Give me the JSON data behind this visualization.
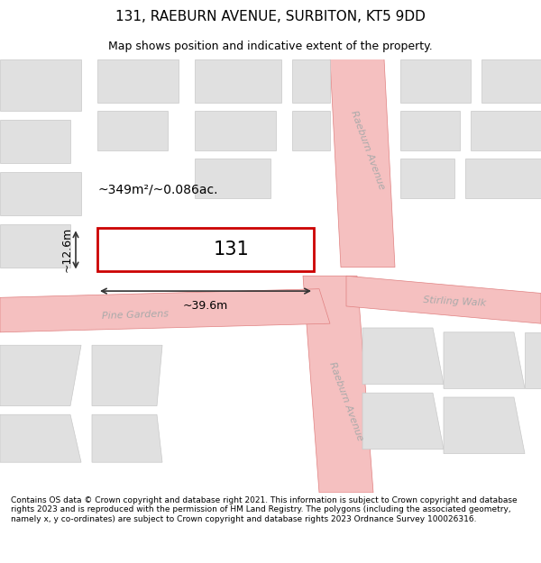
{
  "title": "131, RAEBURN AVENUE, SURBITON, KT5 9DD",
  "subtitle": "Map shows position and indicative extent of the property.",
  "footer": "Contains OS data © Crown copyright and database right 2021. This information is subject to Crown copyright and database rights 2023 and is reproduced with the permission of HM Land Registry. The polygons (including the associated geometry, namely x, y co-ordinates) are subject to Crown copyright and database rights 2023 Ordnance Survey 100026316.",
  "map_bg": "#f8f8f8",
  "road_color": "#f5c0c0",
  "road_edge_color": "#e08080",
  "building_fill": "#e0e0e0",
  "building_edge": "#c8c8c8",
  "highlight_fill": "#ffffff",
  "highlight_edge": "#cc0000",
  "highlight_lw": 2.0,
  "dim_color": "#333333",
  "road_label_color": "#aaaaaa",
  "area_label": "~349m²/~0.086ac.",
  "number_label": "131",
  "dim_width": "~39.6m",
  "dim_height": "~12.6m",
  "street1": "Raeburn Avenue",
  "street2": "Raeburn Avenue",
  "street3": "Pine Gardens",
  "street4": "Stirling Walk"
}
